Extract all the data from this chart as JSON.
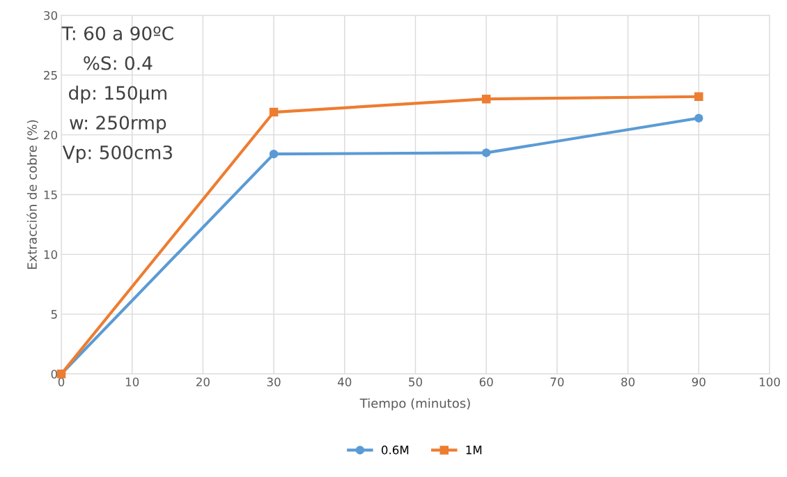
{
  "chart_data": {
    "type": "line",
    "xlabel": "Tiempo (minutos)",
    "ylabel": "Extracción de cobre (%)",
    "x": [
      0,
      30,
      60,
      90
    ],
    "series": [
      {
        "name": "0.6M",
        "color": "#5b9bd5",
        "values": [
          0,
          18.4,
          18.5,
          21.4
        ],
        "marker": "circle"
      },
      {
        "name": "1M",
        "color": "#ed7d31",
        "values": [
          0,
          21.9,
          23.0,
          23.2
        ],
        "marker": "square"
      }
    ],
    "xlim": [
      0,
      100
    ],
    "xticks": [
      0,
      10,
      20,
      30,
      40,
      50,
      60,
      70,
      80,
      90,
      100
    ],
    "ylim": [
      0,
      30
    ],
    "yticks": [
      0,
      5,
      10,
      15,
      20,
      25,
      30
    ],
    "grid": true,
    "legend": "bottom",
    "line_style": "solid",
    "annotations": [
      "T: 60 a 90ºC",
      "%S: 0.4",
      "dp: 150µm",
      "w: 250rmp",
      "Vp: 500cm3"
    ]
  }
}
